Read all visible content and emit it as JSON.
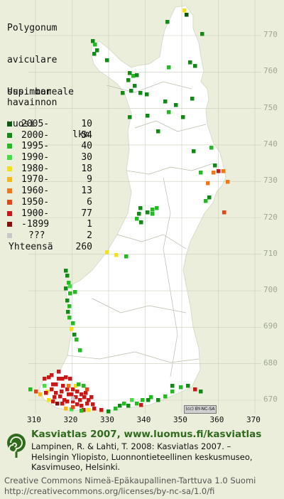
{
  "species": {
    "line1": "Polygonum",
    "line2": "aviculare",
    "line3": "ssp. boreale"
  },
  "legend": {
    "header1": "Uusimman",
    "header2": "havainnon",
    "header_col1": "vuosi",
    "header_col2": "lkm",
    "rows": [
      {
        "label": "2005-",
        "count": "10",
        "color": "#0b5a10"
      },
      {
        "label": "2000-",
        "count": "54",
        "color": "#128a16"
      },
      {
        "label": "1995-",
        "count": "40",
        "color": "#22bb22"
      },
      {
        "label": "1990-",
        "count": "30",
        "color": "#44dd44"
      },
      {
        "label": "1980-",
        "count": "18",
        "color": "#f5e017"
      },
      {
        "label": "1970-",
        "count": "9",
        "color": "#f6b816"
      },
      {
        "label": "1960-",
        "count": "13",
        "color": "#f07818"
      },
      {
        "label": "1950-",
        "count": "6",
        "color": "#e04818"
      },
      {
        "label": "1900-",
        "count": "77",
        "color": "#c81818"
      },
      {
        "label": "-1899",
        "count": "1",
        "color": "#8a0e0e"
      },
      {
        "label": "???",
        "count": "2",
        "color": "#c8c8c8"
      }
    ],
    "total_label": "Yhteensä",
    "total_count": "260"
  },
  "axes": {
    "y_ticks": [
      "770",
      "760",
      "750",
      "740",
      "730",
      "720",
      "710",
      "700",
      "690",
      "680",
      "670"
    ],
    "x_ticks": [
      "310",
      "320",
      "330",
      "340",
      "350",
      "360",
      "370"
    ]
  },
  "license_badge": "(cc) BY-NC-SA",
  "footer": {
    "title": "Kasviatlas 2007, www.luomus.fi/kasviatlas",
    "ref1": "Lampinen, R. & Lahti, T. 2008: Kasviatlas 2007. –",
    "ref2": "Helsingin Yliopisto, Luonnontieteellinen keskusmuseo,",
    "ref3": "Kasvimuseo, Helsinki.",
    "license1": "Creative Commons Nimeä-Epäkaupallinen-Tarttuva 1.0 Suomi",
    "license2": "http://creativecommons.org/licenses/by-nc-sa/1.0/fi"
  },
  "colors": {
    "background": "#eaeeda",
    "land": "#ffffff",
    "grid": "#c8cfbe",
    "footer_title": "#2f6a1d"
  }
}
